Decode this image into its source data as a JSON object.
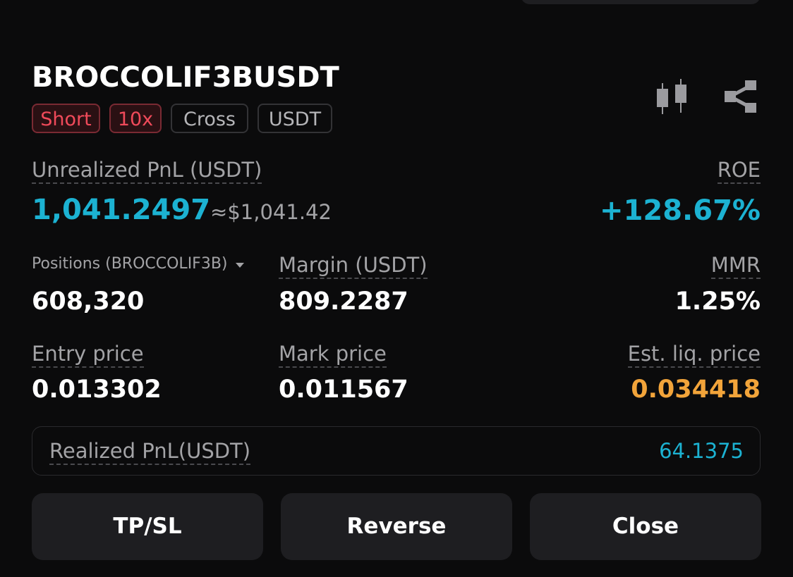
{
  "header": {
    "symbol": "BROCCOLIF3BUSDT",
    "tags": [
      "Short",
      "10x",
      "Cross",
      "USDT"
    ]
  },
  "pnl": {
    "label": "Unrealized PnL (USDT)",
    "value": "1,041.2497",
    "approx": "≈$1,041.42",
    "roe_label": "ROE",
    "roe_value": "+128.67%"
  },
  "stats": [
    [
      {
        "label": "Positions (BROCCOLIF3B)",
        "value": "608,320"
      },
      {
        "label": "Margin (USDT)",
        "value": "809.2287"
      },
      {
        "label": "MMR",
        "value": "1.25%"
      }
    ],
    [
      {
        "label": "Entry price",
        "value": "0.013302"
      },
      {
        "label": "Mark price",
        "value": "0.011567"
      },
      {
        "label": "Est. liq. price",
        "value": "0.034418"
      }
    ]
  ],
  "realized": {
    "label": "Realized PnL(USDT)",
    "value": "64.1375"
  },
  "buttons": [
    "TP/SL",
    "Reverse",
    "Close"
  ]
}
